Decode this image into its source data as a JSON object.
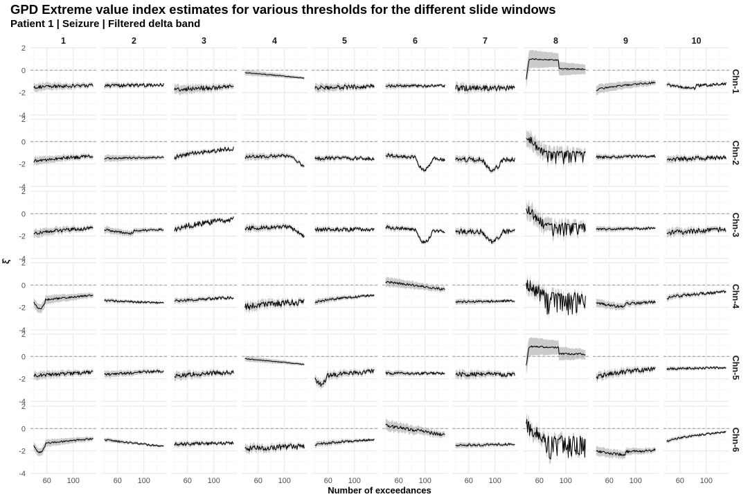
{
  "title": "GPD Extreme value index estimates for various thresholds for the different slide windows",
  "subtitle": "Patient 1 | Seizure | Filtered delta band",
  "colors": {
    "line": "#000000",
    "ribbon": "#c8c8c8",
    "grid_major": "#e6e6e6",
    "grid_minor": "#f2f2f2",
    "reference": "#a0a0a0",
    "background": "#ffffff"
  },
  "chart_data": {
    "type": "line",
    "facet": "grid",
    "title": "GPD Extreme value index estimates for various thresholds for the different slide windows",
    "subtitle": "Patient 1 | Seizure | Filtered delta band",
    "xlabel": "Number of exceedances",
    "ylabel": "ξ̂",
    "columns": [
      "1",
      "2",
      "3",
      "4",
      "5",
      "6",
      "7",
      "8",
      "9",
      "10"
    ],
    "rows": [
      "Chn-1",
      "Chn-2",
      "Chn-3",
      "Chn-4",
      "Chn-5",
      "Chn-6"
    ],
    "xlim": [
      35,
      135
    ],
    "ylim": [
      -4,
      2
    ],
    "x_ticks": [
      60,
      100
    ],
    "y_ticks": [
      -4,
      -2,
      0,
      2
    ],
    "x_tick_labels": [
      "60",
      "100"
    ],
    "y_tick_labels": [
      "-4",
      "-2",
      "0",
      "2"
    ],
    "reference_line": {
      "y": 0,
      "style": "dashed"
    },
    "band": "confidence ribbon (grey)",
    "x_range": [
      40,
      130
    ],
    "panels": [
      [
        {
          "level": -1.5,
          "end": -1.35,
          "noise": 0.15,
          "band": 0.3,
          "shape": "flat"
        },
        {
          "level": -1.4,
          "end": -1.3,
          "noise": 0.15,
          "band": 0.2,
          "shape": "flat"
        },
        {
          "level": -1.7,
          "end": -1.5,
          "noise": 0.2,
          "band": 0.35,
          "shape": "flat"
        },
        {
          "level": -0.2,
          "end": -0.7,
          "noise": 0.03,
          "band": 0.2,
          "shape": "decline"
        },
        {
          "level": -1.6,
          "end": -1.4,
          "noise": 0.2,
          "band": 0.3,
          "shape": "flat"
        },
        {
          "level": -1.4,
          "end": -1.4,
          "noise": 0.12,
          "band": 0.2,
          "shape": "flat"
        },
        {
          "level": -1.6,
          "end": -1.6,
          "noise": 0.25,
          "band": 0.3,
          "shape": "flat"
        },
        {
          "level": 1.0,
          "end": 0.1,
          "noise": 0.05,
          "band": 0.7,
          "shape": "hump"
        },
        {
          "level": -1.8,
          "end": -1.1,
          "noise": 0.08,
          "band": 0.35,
          "shape": "rise"
        },
        {
          "level": -1.3,
          "end": -1.2,
          "noise": 0.12,
          "band": 0.15,
          "shape": "dip"
        }
      ],
      [
        {
          "level": -1.8,
          "end": -1.3,
          "noise": 0.15,
          "band": 0.3,
          "shape": "rise"
        },
        {
          "level": -1.5,
          "end": -1.4,
          "noise": 0.08,
          "band": 0.25,
          "shape": "flat"
        },
        {
          "level": -1.5,
          "end": -0.6,
          "noise": 0.2,
          "band": 0.2,
          "shape": "rise"
        },
        {
          "level": -1.4,
          "end": -2.4,
          "noise": 0.15,
          "band": 0.25,
          "shape": "tail_drop"
        },
        {
          "level": -1.5,
          "end": -1.5,
          "noise": 0.18,
          "band": 0.2,
          "shape": "flat"
        },
        {
          "level": -1.2,
          "end": -1.6,
          "noise": 0.15,
          "band": 0.2,
          "shape": "mid_drop"
        },
        {
          "level": -1.6,
          "end": -1.6,
          "noise": 0.22,
          "band": 0.25,
          "shape": "mid_dip"
        },
        {
          "level": 0.4,
          "end": -1.3,
          "noise": 0.4,
          "band": 0.6,
          "shape": "decay_spiky"
        },
        {
          "level": -1.4,
          "end": -1.3,
          "noise": 0.12,
          "band": 0.2,
          "shape": "flat"
        },
        {
          "level": -1.6,
          "end": -1.4,
          "noise": 0.2,
          "band": 0.25,
          "shape": "flat"
        }
      ],
      [
        {
          "level": -1.8,
          "end": -1.3,
          "noise": 0.15,
          "band": 0.3,
          "shape": "rise"
        },
        {
          "level": -1.4,
          "end": -1.4,
          "noise": 0.1,
          "band": 0.25,
          "shape": "dip"
        },
        {
          "level": -1.5,
          "end": -0.5,
          "noise": 0.25,
          "band": 0.2,
          "shape": "rise"
        },
        {
          "level": -1.3,
          "end": -2.2,
          "noise": 0.18,
          "band": 0.25,
          "shape": "tail_drop"
        },
        {
          "level": -1.4,
          "end": -1.4,
          "noise": 0.18,
          "band": 0.2,
          "shape": "flat"
        },
        {
          "level": -1.2,
          "end": -1.6,
          "noise": 0.15,
          "band": 0.2,
          "shape": "mid_drop"
        },
        {
          "level": -1.6,
          "end": -1.6,
          "noise": 0.22,
          "band": 0.25,
          "shape": "mid_dip"
        },
        {
          "level": 0.5,
          "end": -1.2,
          "noise": 0.4,
          "band": 0.6,
          "shape": "decay_spiky"
        },
        {
          "level": -1.4,
          "end": -1.3,
          "noise": 0.1,
          "band": 0.2,
          "shape": "flat"
        },
        {
          "level": -1.7,
          "end": -1.4,
          "noise": 0.22,
          "band": 0.3,
          "shape": "flat"
        }
      ],
      [
        {
          "level": -1.5,
          "end": -1.1,
          "noise": 0.08,
          "band": 0.35,
          "shape": "early_dip"
        },
        {
          "level": -1.4,
          "end": -1.6,
          "noise": 0.1,
          "band": 0.15,
          "shape": "flat"
        },
        {
          "level": -1.4,
          "end": -1.1,
          "noise": 0.12,
          "band": 0.2,
          "shape": "flat"
        },
        {
          "level": -2.0,
          "end": -1.5,
          "noise": 0.3,
          "band": 0.35,
          "shape": "rise"
        },
        {
          "level": -1.6,
          "end": -0.9,
          "noise": 0.1,
          "band": 0.2,
          "shape": "rise"
        },
        {
          "level": 0.3,
          "end": -0.4,
          "noise": 0.1,
          "band": 0.35,
          "shape": "decline"
        },
        {
          "level": -1.5,
          "end": -1.4,
          "noise": 0.1,
          "band": 0.2,
          "shape": "flat"
        },
        {
          "level": 0.2,
          "end": -1.0,
          "noise": 0.7,
          "band": 0.5,
          "shape": "decay_spiky"
        },
        {
          "level": -1.6,
          "end": -1.5,
          "noise": 0.12,
          "band": 0.3,
          "shape": "dip"
        },
        {
          "level": -1.2,
          "end": -0.6,
          "noise": 0.12,
          "band": 0.2,
          "shape": "rise"
        }
      ],
      [
        {
          "level": -1.7,
          "end": -1.4,
          "noise": 0.15,
          "band": 0.3,
          "shape": "flat"
        },
        {
          "level": -1.6,
          "end": -1.3,
          "noise": 0.12,
          "band": 0.25,
          "shape": "flat"
        },
        {
          "level": -1.8,
          "end": -1.4,
          "noise": 0.2,
          "band": 0.3,
          "shape": "rise"
        },
        {
          "level": -0.2,
          "end": -0.7,
          "noise": 0.03,
          "band": 0.2,
          "shape": "decline"
        },
        {
          "level": -1.9,
          "end": -1.5,
          "noise": 0.2,
          "band": 0.3,
          "shape": "early_dip"
        },
        {
          "level": -1.5,
          "end": -1.5,
          "noise": 0.12,
          "band": 0.2,
          "shape": "flat"
        },
        {
          "level": -1.6,
          "end": -1.6,
          "noise": 0.2,
          "band": 0.3,
          "shape": "flat"
        },
        {
          "level": 0.9,
          "end": 0.2,
          "noise": 0.08,
          "band": 0.7,
          "shape": "hump"
        },
        {
          "level": -1.9,
          "end": -1.1,
          "noise": 0.2,
          "band": 0.3,
          "shape": "rise"
        },
        {
          "level": -1.1,
          "end": -1.0,
          "noise": 0.1,
          "band": 0.15,
          "shape": "flat"
        }
      ],
      [
        {
          "level": -1.5,
          "end": -1.1,
          "noise": 0.08,
          "band": 0.3,
          "shape": "early_dip"
        },
        {
          "level": -1.0,
          "end": -1.6,
          "noise": 0.08,
          "band": 0.15,
          "shape": "decline"
        },
        {
          "level": -1.4,
          "end": -1.3,
          "noise": 0.15,
          "band": 0.2,
          "shape": "flat"
        },
        {
          "level": -1.8,
          "end": -1.6,
          "noise": 0.25,
          "band": 0.3,
          "shape": "flat"
        },
        {
          "level": -1.5,
          "end": -1.0,
          "noise": 0.1,
          "band": 0.2,
          "shape": "rise"
        },
        {
          "level": 0.3,
          "end": -0.6,
          "noise": 0.15,
          "band": 0.4,
          "shape": "decline"
        },
        {
          "level": -1.5,
          "end": -1.4,
          "noise": 0.1,
          "band": 0.2,
          "shape": "flat"
        },
        {
          "level": 0.3,
          "end": -1.0,
          "noise": 0.7,
          "band": 0.5,
          "shape": "decay_spiky"
        },
        {
          "level": -2.0,
          "end": -1.9,
          "noise": 0.12,
          "band": 0.35,
          "shape": "dip"
        },
        {
          "level": -1.2,
          "end": -0.3,
          "noise": 0.08,
          "band": 0.15,
          "shape": "rise"
        }
      ]
    ]
  }
}
